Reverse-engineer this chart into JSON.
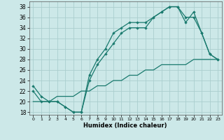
{
  "xlabel": "Humidex (Indice chaleur)",
  "bg_color": "#cce8e8",
  "line_color": "#1a7a6e",
  "grid_color": "#aacece",
  "xlim": [
    -0.5,
    23.5
  ],
  "ylim": [
    17.5,
    39.0
  ],
  "xticks": [
    0,
    1,
    2,
    3,
    4,
    5,
    6,
    7,
    8,
    9,
    10,
    11,
    12,
    13,
    14,
    15,
    16,
    17,
    18,
    19,
    20,
    21,
    22,
    23
  ],
  "yticks": [
    18,
    20,
    22,
    24,
    26,
    28,
    30,
    32,
    34,
    36,
    38
  ],
  "line1_x": [
    0,
    1,
    2,
    3,
    4,
    5,
    6,
    7,
    8,
    9,
    10,
    11,
    12,
    13,
    14,
    15,
    16,
    17,
    18,
    19,
    20,
    21,
    22,
    23
  ],
  "line1_y": [
    23,
    21,
    20,
    20,
    19,
    18,
    18,
    24,
    27,
    29,
    31,
    33,
    34,
    34,
    34,
    36,
    37,
    38,
    38,
    36,
    36,
    33,
    29,
    28
  ],
  "line2_x": [
    0,
    1,
    2,
    3,
    4,
    5,
    6,
    7,
    8,
    9,
    10,
    11,
    12,
    13,
    14,
    15,
    16,
    17,
    18,
    19,
    20,
    21,
    22,
    23
  ],
  "line2_y": [
    22,
    20,
    20,
    20,
    19,
    18,
    18,
    25,
    28,
    30,
    33,
    34,
    35,
    35,
    35,
    36,
    37,
    38,
    38,
    35,
    37,
    33,
    29,
    28
  ],
  "line3_x": [
    0,
    1,
    2,
    3,
    4,
    5,
    6,
    7,
    8,
    9,
    10,
    11,
    12,
    13,
    14,
    15,
    16,
    17,
    18,
    19,
    20,
    21,
    22,
    23
  ],
  "line3_y": [
    20,
    20,
    20,
    21,
    21,
    21,
    22,
    22,
    23,
    23,
    24,
    24,
    25,
    25,
    26,
    26,
    27,
    27,
    27,
    27,
    28,
    28,
    28,
    28
  ]
}
